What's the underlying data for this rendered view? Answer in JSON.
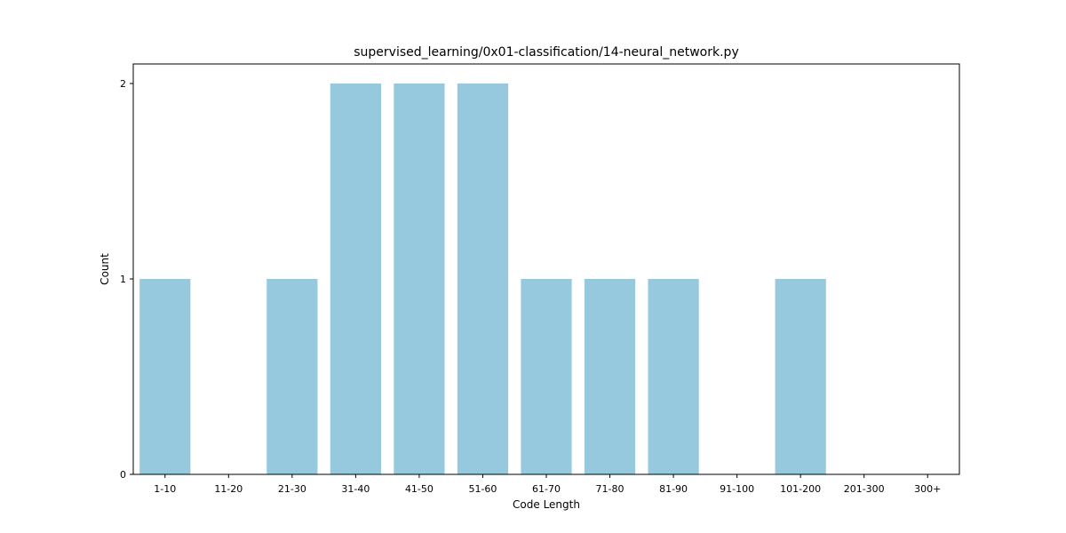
{
  "chart_data": {
    "type": "bar",
    "title": "supervised_learning/0x01-classification/14-neural_network.py",
    "xlabel": "Code Length",
    "ylabel": "Count",
    "categories": [
      "1-10",
      "11-20",
      "21-30",
      "31-40",
      "41-50",
      "51-60",
      "61-70",
      "71-80",
      "81-90",
      "91-100",
      "101-200",
      "201-300",
      "300+"
    ],
    "values": [
      1,
      0,
      1,
      2,
      2,
      2,
      1,
      1,
      1,
      0,
      1,
      0,
      0
    ],
    "ylim": [
      0,
      2.1
    ],
    "yticks": [
      0,
      1,
      2
    ],
    "grid": false,
    "bar_color": "#96c9de"
  }
}
